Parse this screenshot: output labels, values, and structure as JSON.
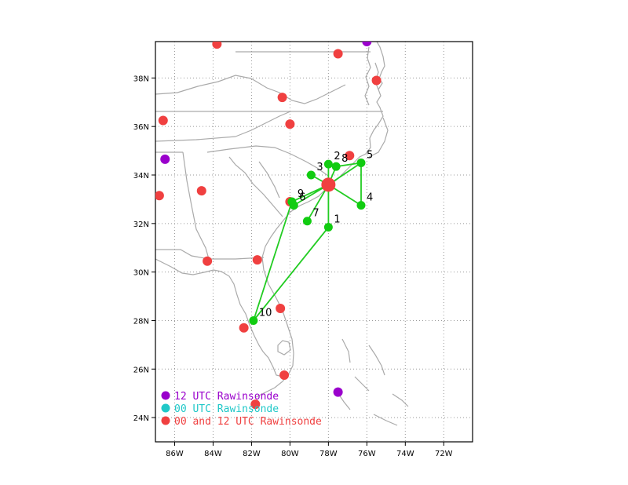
{
  "map": {
    "extent": {
      "lon_min": -87.0,
      "lon_max": -70.5,
      "lat_min": 23.0,
      "lat_max": 39.5
    },
    "gridlines": "dotted",
    "x_ticks": [
      {
        "lon": -86,
        "label": "86W"
      },
      {
        "lon": -84,
        "label": "84W"
      },
      {
        "lon": -82,
        "label": "82W"
      },
      {
        "lon": -80,
        "label": "80W"
      },
      {
        "lon": -78,
        "label": "78W"
      },
      {
        "lon": -76,
        "label": "76W"
      },
      {
        "lon": -74,
        "label": "74W"
      },
      {
        "lon": -72,
        "label": "72W"
      }
    ],
    "y_ticks": [
      {
        "lat": 24,
        "label": "24N"
      },
      {
        "lat": 26,
        "label": "26N"
      },
      {
        "lat": 28,
        "label": "28N"
      },
      {
        "lat": 30,
        "label": "30N"
      },
      {
        "lat": 32,
        "label": "32N"
      },
      {
        "lat": 34,
        "label": "34N"
      },
      {
        "lat": 36,
        "label": "36N"
      },
      {
        "lat": 38,
        "label": "38N"
      }
    ]
  },
  "colors": {
    "both_rawinsonde": "#f04040",
    "utc12_rawinsonde": "#9a00cc",
    "utc00_rawinsonde": "#20c8c8",
    "dropsonde": "#11cc11",
    "track_line": "#22cc22",
    "coast": "#aaaaaa",
    "storm_center": "#f04040"
  },
  "legend": {
    "items": [
      {
        "label": "12 UTC Rawinsonde",
        "color": "#9a00cc"
      },
      {
        "label": "00 UTC Rawinsonde",
        "color": "#20c8c8"
      },
      {
        "label": "00 and 12 UTC Rawinsonde",
        "color": "#f04040"
      }
    ]
  },
  "storm_center": {
    "lon": -78.0,
    "lat": 33.6
  },
  "rawinsondes_both": [
    {
      "lon": -83.8,
      "lat": 39.4
    },
    {
      "lon": -77.5,
      "lat": 39.0
    },
    {
      "lon": -75.5,
      "lat": 37.9
    },
    {
      "lon": -80.4,
      "lat": 37.2
    },
    {
      "lon": -80.0,
      "lat": 36.1
    },
    {
      "lon": -86.6,
      "lat": 36.25
    },
    {
      "lon": -84.6,
      "lat": 33.35
    },
    {
      "lon": -86.8,
      "lat": 33.15
    },
    {
      "lon": -76.9,
      "lat": 34.8
    },
    {
      "lon": -80.0,
      "lat": 32.9
    },
    {
      "lon": -84.3,
      "lat": 30.45
    },
    {
      "lon": -81.7,
      "lat": 30.5
    },
    {
      "lon": -80.5,
      "lat": 28.5
    },
    {
      "lon": -82.4,
      "lat": 27.7
    },
    {
      "lon": -80.3,
      "lat": 25.75
    },
    {
      "lon": -81.8,
      "lat": 24.55
    }
  ],
  "rawinsondes_12utc": [
    {
      "lon": -76.0,
      "lat": 39.5
    },
    {
      "lon": -86.5,
      "lat": 34.65
    },
    {
      "lon": -77.5,
      "lat": 25.05
    }
  ],
  "dropsondes": [
    {
      "id": "1",
      "lon": -78.0,
      "lat": 31.85
    },
    {
      "id": "2",
      "lon": -78.0,
      "lat": 34.45
    },
    {
      "id": "3",
      "lon": -78.9,
      "lat": 34.0
    },
    {
      "id": "4",
      "lon": -76.3,
      "lat": 32.75
    },
    {
      "id": "5",
      "lon": -76.3,
      "lat": 34.5
    },
    {
      "id": "6",
      "lon": -79.8,
      "lat": 32.75
    },
    {
      "id": "7",
      "lon": -79.1,
      "lat": 32.1
    },
    {
      "id": "8",
      "lon": -77.6,
      "lat": 34.35
    },
    {
      "id": "9",
      "lon": -79.9,
      "lat": 32.9
    },
    {
      "id": "10",
      "lon": -81.9,
      "lat": 28.0
    }
  ],
  "flight_track_order": [
    "2",
    "center",
    "1",
    "10",
    "9",
    "center",
    "3",
    "center",
    "7",
    "center",
    "8",
    "5",
    "4",
    "center",
    "5",
    "center",
    "6"
  ]
}
